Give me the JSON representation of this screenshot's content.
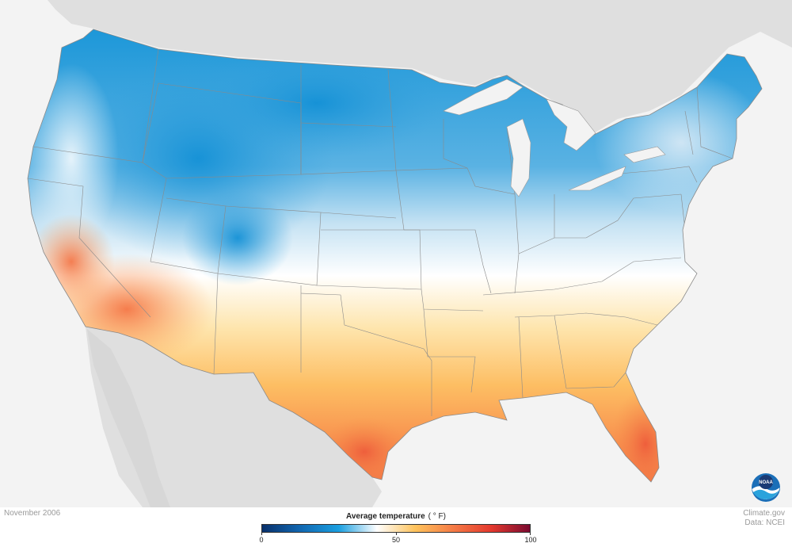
{
  "map": {
    "date": "November 2006",
    "credit_line1": "Climate.gov",
    "credit_line2": "Data: NCEI",
    "logo_text": "NOAA",
    "legend": {
      "title": "Average temperature",
      "unit": "( ° F)",
      "min": 0,
      "max": 100,
      "ticks": [
        "0",
        "50",
        "100"
      ],
      "colors": [
        "#08306b",
        "#1167b1",
        "#1a9fe0",
        "#ffffff",
        "#fec35c",
        "#f57b46",
        "#e3382e",
        "#7a0a30"
      ]
    },
    "colors": {
      "land_gray": "#dfdfdf",
      "water": "#f3f3f3",
      "cold_blue": "#1b97d8",
      "warm_orange": "#f58a4c"
    }
  }
}
